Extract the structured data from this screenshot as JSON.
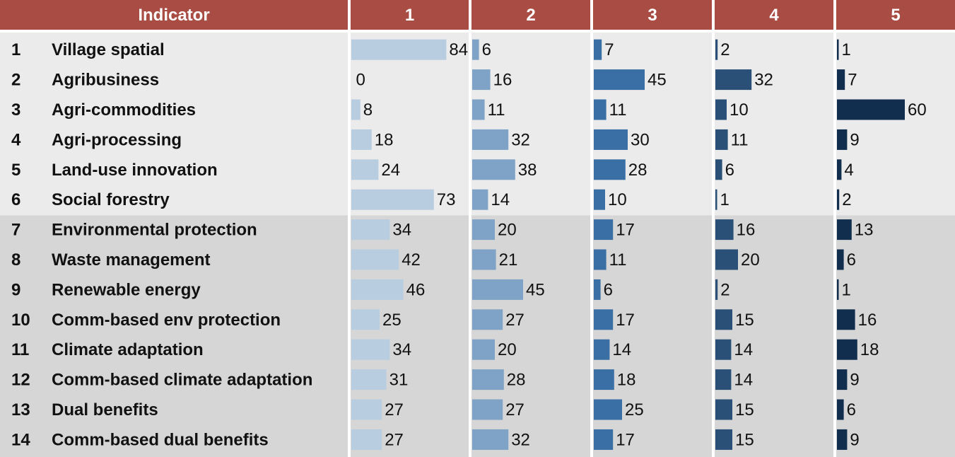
{
  "chart_data": {
    "type": "table",
    "header": {
      "indicator_label": "Indicator",
      "columns": [
        "1",
        "2",
        "3",
        "4",
        "5"
      ]
    },
    "rows": [
      {
        "num": "1",
        "label": "Village spatial",
        "group": 1,
        "values": [
          84,
          6,
          7,
          2,
          1
        ]
      },
      {
        "num": "2",
        "label": "Agribusiness",
        "group": 1,
        "values": [
          0,
          16,
          45,
          32,
          7
        ]
      },
      {
        "num": "3",
        "label": "Agri-commodities",
        "group": 1,
        "values": [
          8,
          11,
          11,
          10,
          60
        ]
      },
      {
        "num": "4",
        "label": "Agri-processing",
        "group": 1,
        "values": [
          18,
          32,
          30,
          11,
          9
        ]
      },
      {
        "num": "5",
        "label": "Land-use innovation",
        "group": 1,
        "values": [
          24,
          38,
          28,
          6,
          4
        ]
      },
      {
        "num": "6",
        "label": "Social forestry",
        "group": 1,
        "values": [
          73,
          14,
          10,
          1,
          2
        ]
      },
      {
        "num": "7",
        "label": "Environmental protection",
        "group": 2,
        "values": [
          34,
          20,
          17,
          16,
          13
        ]
      },
      {
        "num": "8",
        "label": "Waste management",
        "group": 2,
        "values": [
          42,
          21,
          11,
          20,
          6
        ]
      },
      {
        "num": "9",
        "label": "Renewable energy",
        "group": 2,
        "values": [
          46,
          45,
          6,
          2,
          1
        ]
      },
      {
        "num": "10",
        "label": "Comm-based env protection",
        "group": 2,
        "values": [
          25,
          27,
          17,
          15,
          16
        ]
      },
      {
        "num": "11",
        "label": "Climate adaptation",
        "group": 2,
        "values": [
          34,
          20,
          14,
          14,
          18
        ]
      },
      {
        "num": "12",
        "label": "Comm-based climate adaptation",
        "group": 2,
        "values": [
          31,
          28,
          18,
          14,
          9
        ]
      },
      {
        "num": "13",
        "label": "Dual benefits",
        "group": 2,
        "values": [
          27,
          27,
          25,
          15,
          6
        ]
      },
      {
        "num": "14",
        "label": "Comm-based dual benefits",
        "group": 2,
        "values": [
          27,
          32,
          17,
          15,
          9
        ]
      }
    ],
    "scale_max": 100,
    "colors": {
      "header": "#a94d44",
      "group1_background": "#ebebeb",
      "group2_background": "#d6d6d6",
      "column_bars": [
        "#b8cee0",
        "#7fa3c7",
        "#3a6fa5",
        "#2a5078",
        "#122e4f"
      ]
    }
  }
}
